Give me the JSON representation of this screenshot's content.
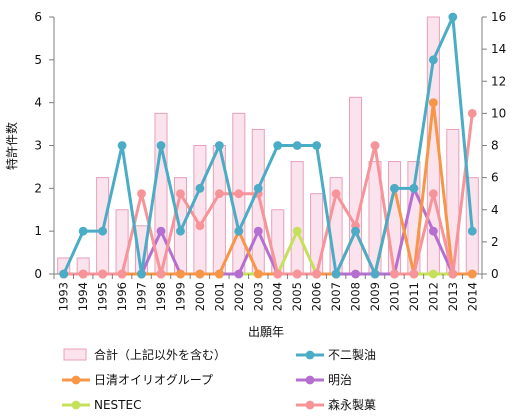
{
  "chart_data": {
    "type": "bar+line",
    "ylabel": "特許件数",
    "xlabel": "出願年",
    "categories": [
      "1993",
      "1994",
      "1995",
      "1996",
      "1997",
      "1998",
      "1999",
      "2000",
      "2001",
      "2002",
      "2003",
      "2004",
      "2005",
      "2006",
      "2007",
      "2008",
      "2009",
      "2010",
      "2011",
      "2012",
      "2013",
      "2014"
    ],
    "y_left": {
      "min": 0,
      "max": 6,
      "ticks": [
        0,
        1,
        2,
        3,
        4,
        5,
        6
      ]
    },
    "y_right": {
      "min": 0,
      "max": 16,
      "ticks": [
        0,
        2,
        4,
        6,
        8,
        10,
        12,
        14,
        16
      ]
    },
    "grid": false,
    "legend_position": "bottom",
    "series": [
      {
        "name": "合計（上記以外を含む）",
        "kind": "bar",
        "axis": "right",
        "color": "#fbe3ee",
        "stroke": "#e8a0b8",
        "values": [
          1,
          1,
          6,
          4,
          3,
          10,
          6,
          8,
          8,
          10,
          9,
          4,
          7,
          5,
          6,
          11,
          7,
          7,
          7,
          16,
          9,
          6
        ]
      },
      {
        "name": "不二製油",
        "kind": "line",
        "axis": "left",
        "color": "#4bacc6",
        "values": [
          0,
          1,
          1,
          3,
          0,
          3,
          1,
          2,
          3,
          1,
          2,
          3,
          3,
          3,
          0,
          1,
          0,
          2,
          2,
          5,
          6,
          1
        ]
      },
      {
        "name": "日清オイリオグループ",
        "kind": "line",
        "axis": "left",
        "color": "#f79646",
        "values": [
          0,
          0,
          0,
          0,
          0,
          0,
          0,
          0,
          0,
          1,
          0,
          0,
          0,
          0,
          0,
          1,
          0,
          2,
          0,
          4,
          0,
          0
        ]
      },
      {
        "name": "明治",
        "kind": "line",
        "axis": "left",
        "color": "#b46fd0",
        "values": [
          0,
          0,
          0,
          0,
          0,
          1,
          0,
          0,
          0,
          0,
          1,
          0,
          0,
          0,
          0,
          0,
          0,
          0,
          2,
          1,
          0,
          0
        ]
      },
      {
        "name": "NESTEC",
        "kind": "line",
        "axis": "left",
        "color": "#c5e05a",
        "values": [
          0,
          0,
          0,
          0,
          0,
          0,
          0,
          0,
          0,
          0,
          0,
          0,
          1,
          0,
          0,
          0,
          0,
          0,
          0,
          0,
          0,
          0
        ]
      },
      {
        "name": "森永製菓",
        "kind": "line",
        "axis": "right",
        "color": "#f79499",
        "values": [
          0,
          0,
          0,
          0,
          5,
          0,
          5,
          3,
          5,
          5,
          5,
          0,
          0,
          0,
          5,
          3,
          8,
          0,
          0,
          5,
          0,
          10
        ]
      }
    ]
  }
}
